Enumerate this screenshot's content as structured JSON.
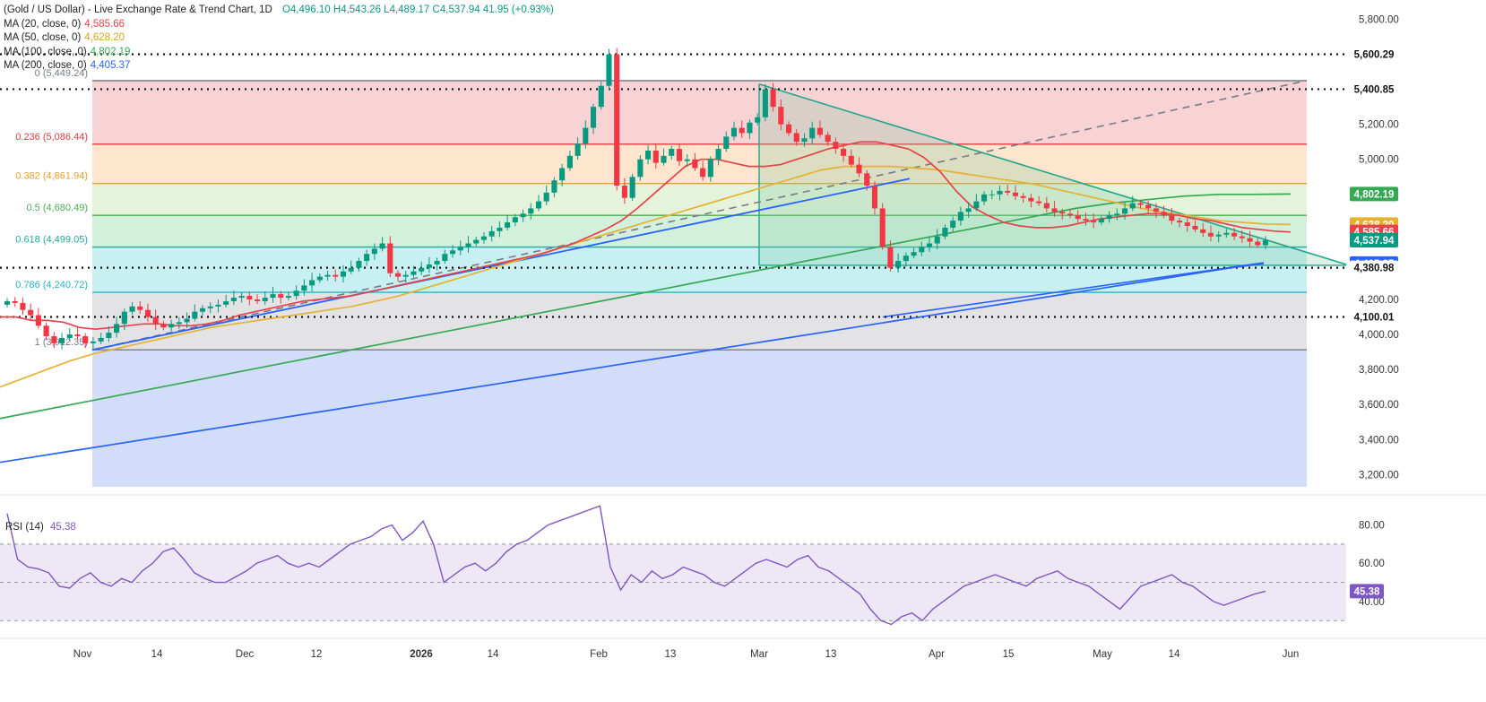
{
  "chart_data": {
    "type": "candlestick",
    "title": "(Gold / US Dollar) - Live Exchange Rate & Trend Chart, 1D",
    "ohlc": {
      "open": "O4,496.10",
      "high": "H4,543.26",
      "low": "L4,489.17",
      "close": "C4,537.94",
      "change": "41.95 (+0.93%)"
    },
    "moving_averages": [
      {
        "name": "MA (20, close, 0)",
        "value": "4,585.66",
        "color": "#e8424a"
      },
      {
        "name": "MA (50, close, 0)",
        "value": "4,628.20",
        "color": "#e6b233"
      },
      {
        "name": "MA (100, close, 0)",
        "value": "4,802.19",
        "color": "#34a853"
      },
      {
        "name": "MA (200, close, 0)",
        "value": "4,405.37",
        "color": "#2962ff"
      }
    ],
    "y_ticks": [
      "5,800.00",
      "5,200.00",
      "5,000.00",
      "4,200.00",
      "4,000.00",
      "3,800.00",
      "3,600.00",
      "3,400.00",
      "3,200.00"
    ],
    "y_tick_values": [
      5800,
      5200,
      5000,
      4200,
      4000,
      3800,
      3600,
      3400,
      3200
    ],
    "price_labels": [
      {
        "label": "5,600.29",
        "value": 5600.29,
        "bg": "#ffffff",
        "fg": "#111111"
      },
      {
        "label": "5,400.85",
        "value": 5400.85,
        "bg": "#ffffff",
        "fg": "#111111"
      },
      {
        "label": "4,802.19",
        "value": 4802.19,
        "bg": "#34a853",
        "fg": "#ffffff"
      },
      {
        "label": "4,628.20",
        "value": 4628.2,
        "bg": "#e6b233",
        "fg": "#ffffff"
      },
      {
        "label": "4,585.66",
        "value": 4585.66,
        "bg": "#e8424a",
        "fg": "#ffffff"
      },
      {
        "label": "4,537.94",
        "value": 4537.94,
        "bg": "#089981",
        "fg": "#ffffff"
      },
      {
        "label": "4,405.37",
        "value": 4405.37,
        "bg": "#2962ff",
        "fg": "#ffffff"
      },
      {
        "label": "4,380.98",
        "value": 4380.98,
        "bg": "#ffffff",
        "fg": "#111111"
      },
      {
        "label": "4,100.01",
        "value": 4100.01,
        "bg": "#ffffff",
        "fg": "#111111"
      }
    ],
    "fib_levels": [
      {
        "label": "0 (5,449.24)",
        "value": 5449.24,
        "line": "#787b86",
        "fill": "#f8d3d6"
      },
      {
        "label": "0.236 (5,086.44)",
        "value": 5086.44,
        "line": "#e03a3e",
        "fill": "#fde6cd"
      },
      {
        "label": "0.382 (4,861.94)",
        "value": 4861.94,
        "line": "#e6a02c",
        "fill": "#e5f3da"
      },
      {
        "label": "0.5 (4,680.49)",
        "value": 4680.49,
        "line": "#4caf50",
        "fill": "#d3f0dc"
      },
      {
        "label": "0.618 (4,499.05)",
        "value": 4499.05,
        "line": "#23a99b",
        "fill": "#c9f0f0"
      },
      {
        "label": "0.786 (4,240.72)",
        "value": 4240.72,
        "line": "#26b3c4",
        "fill": "#e3e3e6"
      },
      {
        "label": "1 (3,912.35)",
        "value": 3912.35,
        "line": "#787b86",
        "fill": "#d2def9"
      }
    ],
    "horizontal_levels": [
      5600.29,
      5400.85,
      4380.98,
      4100.01
    ],
    "x_labels": [
      "Nov",
      "14",
      "Dec",
      "12",
      "2026",
      "14",
      "Feb",
      "13",
      "Mar",
      "13",
      "Apr",
      "15",
      "May",
      "14",
      "Jun"
    ],
    "ylim": [
      3130,
      5910
    ],
    "series_close": [
      4190,
      4180,
      4140,
      4110,
      4050,
      3990,
      3950,
      3980,
      4000,
      3990,
      3950,
      3960,
      3980,
      4010,
      4060,
      4130,
      4160,
      4140,
      4100,
      4060,
      4040,
      4060,
      4070,
      4090,
      4130,
      4150,
      4160,
      4170,
      4190,
      4210,
      4220,
      4200,
      4190,
      4210,
      4230,
      4210,
      4220,
      4250,
      4280,
      4310,
      4330,
      4340,
      4330,
      4360,
      4380,
      4420,
      4460,
      4490,
      4520,
      4350,
      4330,
      4340,
      4360,
      4380,
      4400,
      4420,
      4460,
      4480,
      4500,
      4520,
      4540,
      4560,
      4590,
      4610,
      4640,
      4670,
      4690,
      4720,
      4760,
      4810,
      4880,
      4950,
      5020,
      5090,
      5180,
      5300,
      5420,
      5600,
      4850,
      4780,
      4900,
      5000,
      5050,
      4980,
      5020,
      5060,
      4990,
      5000,
      4950,
      4900,
      5000,
      5060,
      5130,
      5180,
      5150,
      5210,
      5240,
      5400,
      5300,
      5200,
      5150,
      5100,
      5120,
      5180,
      5140,
      5100,
      5060,
      5020,
      4970,
      4920,
      4850,
      4720,
      4500,
      4381,
      4420,
      4450,
      4470,
      4500,
      4520,
      4560,
      4610,
      4650,
      4700,
      4720,
      4760,
      4800,
      4800,
      4820,
      4810,
      4790,
      4780,
      4760,
      4750,
      4720,
      4700,
      4690,
      4680,
      4660,
      4650,
      4640,
      4660,
      4680,
      4690,
      4720,
      4750,
      4740,
      4720,
      4700,
      4680,
      4650,
      4640,
      4620,
      4600,
      4580,
      4560,
      4570,
      4580,
      4560,
      4550,
      4530,
      4510,
      4537.94
    ],
    "ma20": [
      4100,
      4100,
      4080,
      4080,
      4070,
      4040,
      4030,
      4040,
      4050,
      4060,
      4060,
      4050,
      4050,
      4060,
      4080,
      4110,
      4130,
      4150,
      4170,
      4190,
      4200,
      4210,
      4220,
      4240,
      4260,
      4280,
      4300,
      4320,
      4340,
      4360,
      4380,
      4400,
      4420,
      4440,
      4460,
      4490,
      4520,
      4560,
      4600,
      4650,
      4720,
      4800,
      4880,
      4960,
      5000,
      5000,
      4980,
      4960,
      4960,
      4970,
      5000,
      5030,
      5060,
      5080,
      5100,
      5100,
      5080,
      5060,
      5010,
      4930,
      4820,
      4730,
      4680,
      4640,
      4620,
      4610,
      4610,
      4620,
      4640,
      4660,
      4670,
      4680,
      4690,
      4690,
      4680,
      4660,
      4650,
      4630,
      4610,
      4600,
      4590,
      4585
    ],
    "ma50": [
      3700,
      3750,
      3800,
      3850,
      3890,
      3920,
      3950,
      3980,
      4010,
      4040,
      4060,
      4080,
      4100,
      4120,
      4140,
      4160,
      4190,
      4220,
      4260,
      4300,
      4340,
      4380,
      4420,
      4460,
      4500,
      4540,
      4580,
      4620,
      4660,
      4700,
      4740,
      4780,
      4820,
      4860,
      4900,
      4940,
      4960,
      4960,
      4960,
      4950,
      4940,
      4920,
      4900,
      4880,
      4860,
      4830,
      4800,
      4770,
      4740,
      4710,
      4690,
      4670,
      4650,
      4640,
      4630,
      4628
    ],
    "ma100": [
      3520,
      3560,
      3600,
      3640,
      3680,
      3720,
      3760,
      3800,
      3840,
      3880,
      3920,
      3960,
      4000,
      4040,
      4080,
      4120,
      4160,
      4200,
      4240,
      4280,
      4320,
      4360,
      4400,
      4440,
      4480,
      4520,
      4560,
      4600,
      4640,
      4680,
      4720,
      4750,
      4770,
      4790,
      4800,
      4800,
      4802
    ],
    "ma200": [
      3270,
      3300,
      3330,
      3360,
      3390,
      3420,
      3450,
      3480,
      3510,
      3540,
      3570,
      3600,
      3630,
      3660,
      3690,
      3720,
      3750,
      3780,
      3810,
      3840,
      3870,
      3900,
      3930,
      3960,
      3990,
      4020,
      4050,
      4080,
      4110,
      4140,
      4170,
      4200,
      4230,
      4260,
      4290,
      4320,
      4350,
      4380,
      4405
    ],
    "rsi": {
      "label": "RSI (14)",
      "value": "45.38",
      "ticks": [
        "80.00",
        "60.00",
        "40.00"
      ],
      "tick_values": [
        80,
        60,
        40
      ],
      "ylim": [
        24,
        92
      ],
      "upper": 70,
      "mid": 50,
      "lower": 30,
      "values": [
        86,
        62,
        58,
        57,
        55,
        48,
        47,
        52,
        55,
        50,
        48,
        52,
        50,
        56,
        60,
        66,
        68,
        62,
        55,
        52,
        50,
        50,
        53,
        56,
        60,
        62,
        64,
        60,
        58,
        60,
        58,
        62,
        66,
        70,
        72,
        74,
        78,
        80,
        72,
        76,
        82,
        70,
        50,
        54,
        58,
        60,
        56,
        60,
        66,
        70,
        72,
        76,
        80,
        82,
        84,
        86,
        88,
        90,
        58,
        46,
        54,
        50,
        56,
        52,
        54,
        58,
        56,
        54,
        50,
        48,
        52,
        56,
        60,
        62,
        60,
        58,
        62,
        64,
        58,
        56,
        52,
        48,
        44,
        36,
        30,
        28,
        32,
        34,
        30,
        36,
        40,
        44,
        48,
        50,
        52,
        54,
        52,
        50,
        48,
        52,
        54,
        56,
        52,
        50,
        48,
        44,
        40,
        36,
        42,
        48,
        50,
        52,
        54,
        50,
        48,
        44,
        40,
        38,
        40,
        42,
        44,
        45.38
      ]
    }
  }
}
